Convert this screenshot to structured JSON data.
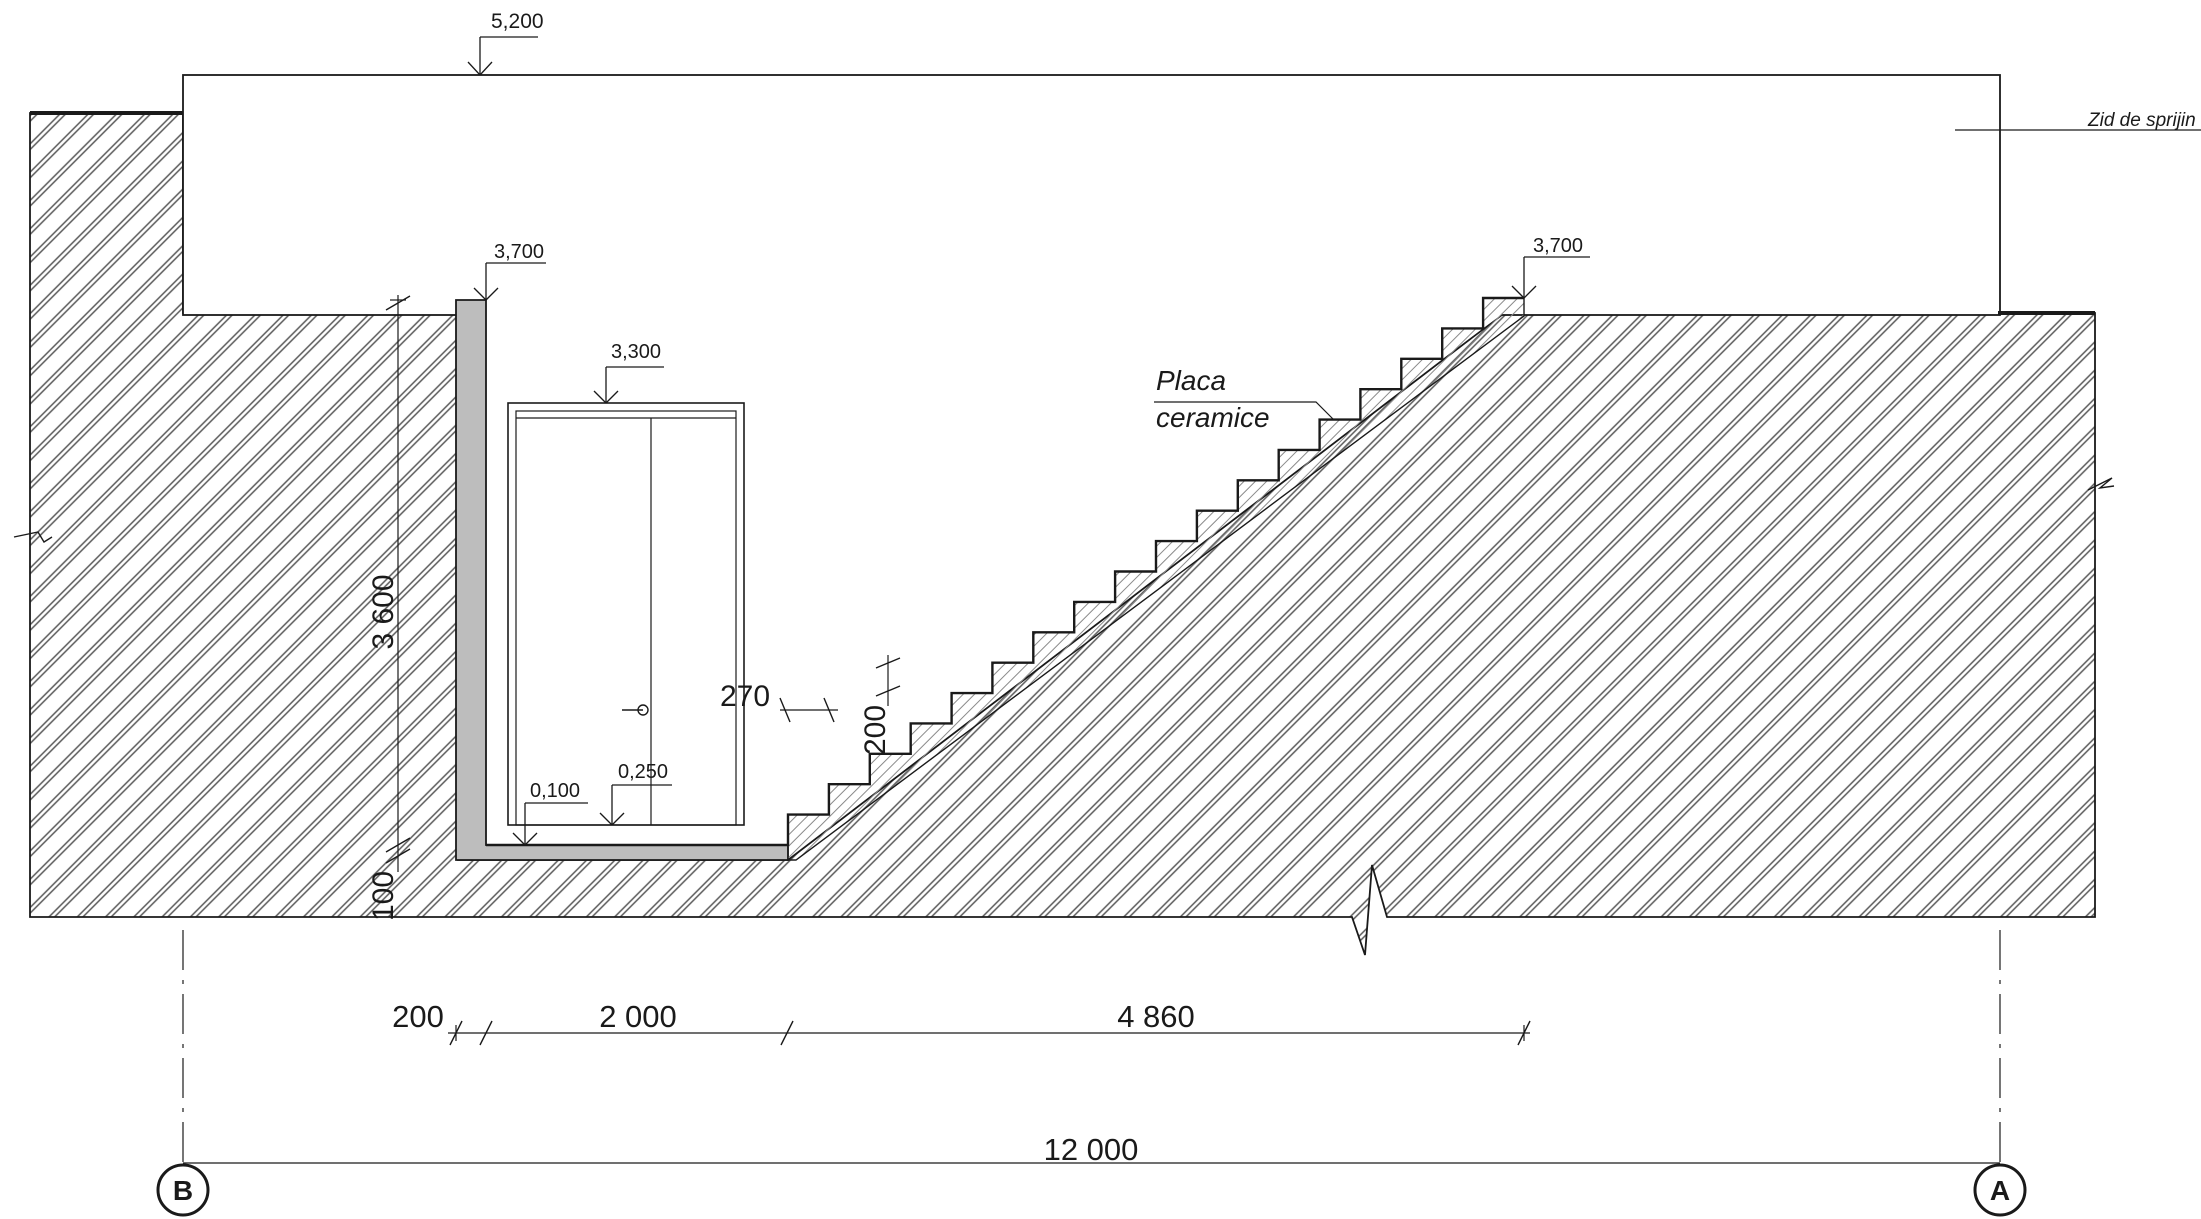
{
  "levels": {
    "top": "5,200",
    "left_top": "3,700",
    "right_top": "3,700",
    "door_head": "3,300",
    "floor_left": "0,100",
    "floor_mid": "0,250"
  },
  "labels": {
    "retaining_wall": "Zid de sprijin",
    "tile_line1": "Placa",
    "tile_line2": "ceramice"
  },
  "dimensions": {
    "height": "3 600",
    "slab": "100",
    "tread": "270",
    "riser": "200",
    "wall": "200",
    "landing": "2 000",
    "stair_run": "4 860",
    "overall": "12 000"
  },
  "axes": {
    "left": "B",
    "right": "A"
  },
  "stair": {
    "steps": 18
  },
  "colors": {
    "ink": "#1a1a1a",
    "concrete": "#c9c9c9",
    "hatch": "#555555"
  }
}
